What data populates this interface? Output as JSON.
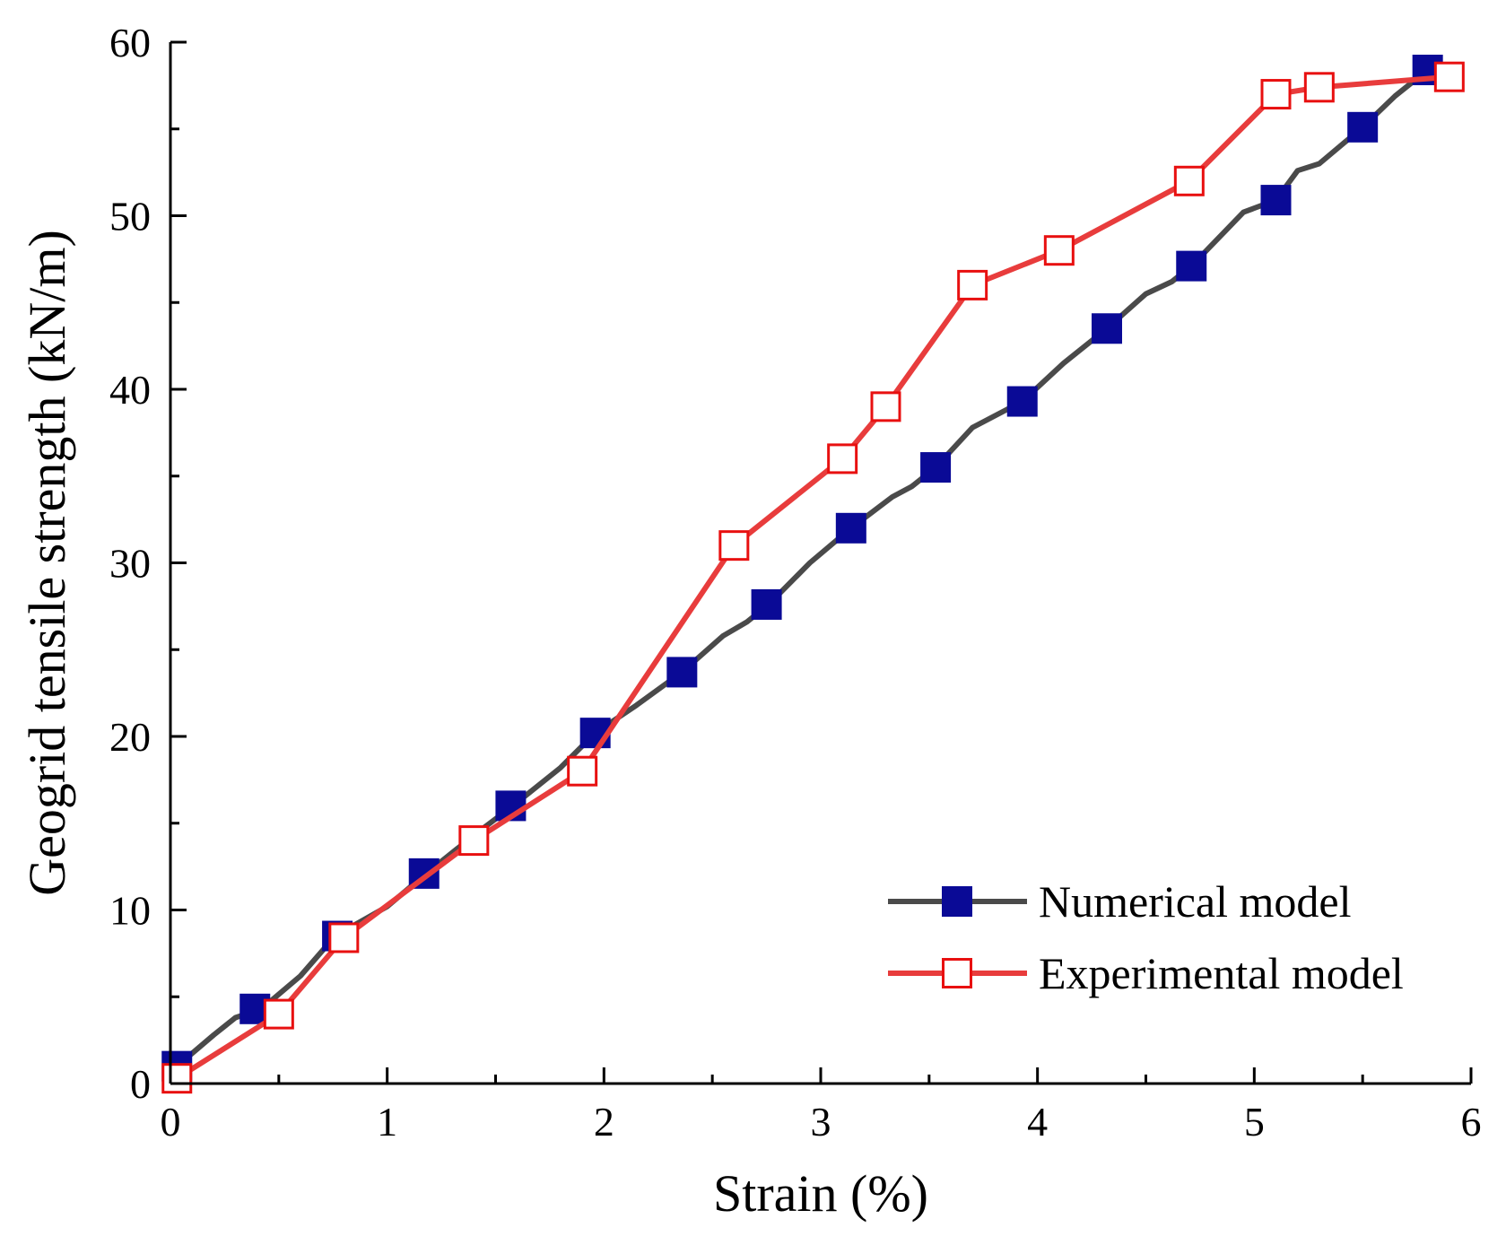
{
  "chart_data": {
    "type": "line",
    "xlabel": "Strain (%)",
    "ylabel": "Geogrid tensile strength (kN/m)",
    "xlim": [
      0,
      6
    ],
    "ylim": [
      0,
      60
    ],
    "xticks": [
      "0",
      "1",
      "2",
      "3",
      "4",
      "5",
      "6"
    ],
    "yticks": [
      "0",
      "10",
      "20",
      "30",
      "40",
      "50",
      "60"
    ],
    "grid": false,
    "legend_position": "bottom-right",
    "series": [
      {
        "name": "Numerical model",
        "line_color": "#4a4a4a",
        "marker": "filled-square",
        "marker_color": "#0a0a96",
        "curve": [
          [
            0.03,
            1.0
          ],
          [
            0.2,
            2.8
          ],
          [
            0.3,
            3.8
          ],
          [
            0.42,
            4.3
          ],
          [
            0.6,
            6.2
          ],
          [
            0.76,
            8.5
          ],
          [
            1.0,
            10.2
          ],
          [
            1.18,
            12.1
          ],
          [
            1.4,
            14.3
          ],
          [
            1.58,
            16.0
          ],
          [
            1.8,
            18.2
          ],
          [
            1.96,
            20.2
          ],
          [
            2.15,
            21.8
          ],
          [
            2.36,
            23.7
          ],
          [
            2.55,
            25.8
          ],
          [
            2.66,
            26.6
          ],
          [
            2.76,
            27.6
          ],
          [
            2.95,
            30.0
          ],
          [
            3.14,
            32.0
          ],
          [
            3.33,
            33.8
          ],
          [
            3.42,
            34.4
          ],
          [
            3.53,
            35.5
          ],
          [
            3.7,
            37.8
          ],
          [
            3.93,
            39.3
          ],
          [
            4.12,
            41.5
          ],
          [
            4.32,
            43.5
          ],
          [
            4.5,
            45.5
          ],
          [
            4.62,
            46.2
          ],
          [
            4.71,
            47.1
          ],
          [
            4.95,
            50.2
          ],
          [
            5.1,
            50.9
          ],
          [
            5.2,
            52.6
          ],
          [
            5.3,
            53.0
          ],
          [
            5.5,
            55.1
          ],
          [
            5.65,
            56.9
          ],
          [
            5.8,
            58.4
          ]
        ],
        "markers": [
          [
            0.03,
            1.0
          ],
          [
            0.39,
            4.3
          ],
          [
            0.77,
            8.5
          ],
          [
            1.17,
            12.1
          ],
          [
            1.57,
            16.0
          ],
          [
            1.96,
            20.2
          ],
          [
            2.36,
            23.7
          ],
          [
            2.75,
            27.6
          ],
          [
            3.14,
            32.0
          ],
          [
            3.53,
            35.5
          ],
          [
            3.93,
            39.3
          ],
          [
            4.32,
            43.5
          ],
          [
            4.71,
            47.1
          ],
          [
            5.1,
            50.9
          ],
          [
            5.5,
            55.1
          ],
          [
            5.8,
            58.4
          ]
        ]
      },
      {
        "name": "Experimental model",
        "line_color": "#e83c3c",
        "marker": "open-square",
        "marker_color": "#e81010",
        "curve": [
          [
            0.03,
            0.3
          ],
          [
            0.5,
            4.0
          ],
          [
            0.8,
            8.4
          ],
          [
            1.4,
            14.0
          ],
          [
            1.9,
            18.0
          ],
          [
            2.6,
            31.0
          ],
          [
            3.1,
            36.0
          ],
          [
            3.3,
            39.0
          ],
          [
            3.7,
            46.0
          ],
          [
            4.1,
            48.0
          ],
          [
            4.7,
            52.0
          ],
          [
            5.1,
            57.0
          ],
          [
            5.3,
            57.4
          ],
          [
            5.9,
            58.0
          ]
        ],
        "markers": [
          [
            0.03,
            0.3
          ],
          [
            0.5,
            4.0
          ],
          [
            0.8,
            8.4
          ],
          [
            1.4,
            14.0
          ],
          [
            1.9,
            18.0
          ],
          [
            2.6,
            31.0
          ],
          [
            3.1,
            36.0
          ],
          [
            3.3,
            39.0
          ],
          [
            3.7,
            46.0
          ],
          [
            4.1,
            48.0
          ],
          [
            4.7,
            52.0
          ],
          [
            5.1,
            57.0
          ],
          [
            5.3,
            57.4
          ],
          [
            5.9,
            58.0
          ]
        ]
      }
    ]
  }
}
